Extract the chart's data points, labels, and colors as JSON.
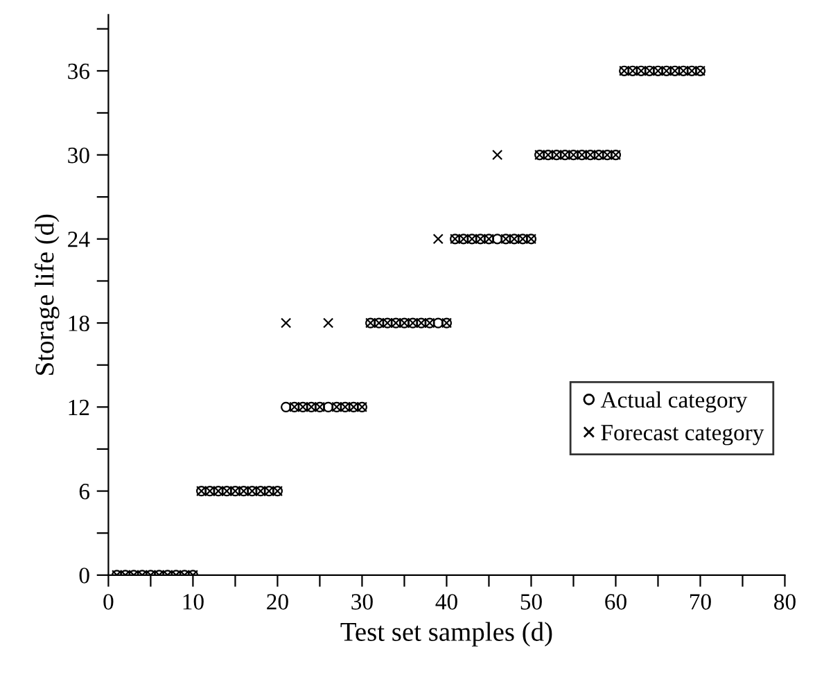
{
  "chart_data": {
    "type": "scatter",
    "xlabel": "Test set samples (d)",
    "ylabel": "Storage life (d)",
    "x": [
      1,
      2,
      3,
      4,
      5,
      6,
      7,
      8,
      9,
      10,
      11,
      12,
      13,
      14,
      15,
      16,
      17,
      18,
      19,
      20,
      21,
      22,
      23,
      24,
      25,
      26,
      27,
      28,
      29,
      30,
      31,
      32,
      33,
      34,
      35,
      36,
      37,
      38,
      39,
      40,
      41,
      42,
      43,
      44,
      45,
      46,
      47,
      48,
      49,
      50,
      51,
      52,
      53,
      54,
      55,
      56,
      57,
      58,
      59,
      60,
      61,
      62,
      63,
      64,
      65,
      66,
      67,
      68,
      69,
      70
    ],
    "series": [
      {
        "name": "Actual category",
        "color": "#000000",
        "marker": "circle",
        "values": [
          0,
          0,
          0,
          0,
          0,
          0,
          0,
          0,
          0,
          0,
          6,
          6,
          6,
          6,
          6,
          6,
          6,
          6,
          6,
          6,
          12,
          12,
          12,
          12,
          12,
          12,
          12,
          12,
          12,
          12,
          18,
          18,
          18,
          18,
          18,
          18,
          18,
          18,
          18,
          18,
          24,
          24,
          24,
          24,
          24,
          24,
          24,
          24,
          24,
          24,
          30,
          30,
          30,
          30,
          30,
          30,
          30,
          30,
          30,
          30,
          36,
          36,
          36,
          36,
          36,
          36,
          36,
          36,
          36,
          36
        ]
      },
      {
        "name": "Forecast category",
        "color": "#000000",
        "marker": "cross",
        "values": [
          0,
          0,
          0,
          0,
          0,
          0,
          0,
          0,
          0,
          0,
          6,
          6,
          6,
          6,
          6,
          6,
          6,
          6,
          6,
          6,
          18,
          12,
          12,
          12,
          12,
          18,
          12,
          12,
          12,
          12,
          18,
          18,
          18,
          18,
          18,
          18,
          18,
          18,
          24,
          18,
          24,
          24,
          24,
          24,
          24,
          30,
          24,
          24,
          24,
          24,
          30,
          30,
          30,
          30,
          30,
          30,
          30,
          30,
          30,
          30,
          36,
          36,
          36,
          36,
          36,
          36,
          36,
          36,
          36,
          36
        ]
      }
    ],
    "xlim": [
      0,
      80
    ],
    "ylim": [
      0,
      40
    ],
    "xticks": [
      0,
      {
        "value": 5,
        "label": null
      },
      10,
      {
        "value": 15,
        "label": null
      },
      20,
      {
        "value": 25,
        "label": null
      },
      30,
      {
        "value": 35,
        "label": null
      },
      40,
      {
        "value": 45,
        "label": null
      },
      50,
      {
        "value": 55,
        "label": null
      },
      60,
      {
        "value": 65,
        "label": null
      },
      70,
      {
        "value": 75,
        "label": null
      },
      80
    ],
    "yticks": [
      0,
      {
        "value": 3,
        "label": null
      },
      6,
      {
        "value": 9,
        "label": null
      },
      12,
      {
        "value": 15,
        "label": null
      },
      18,
      {
        "value": 21,
        "label": null
      },
      24,
      {
        "value": 27,
        "label": null
      },
      30,
      {
        "value": 33,
        "label": null
      },
      36,
      {
        "value": 39,
        "label": null
      }
    ],
    "grid": false,
    "legend": "right"
  }
}
